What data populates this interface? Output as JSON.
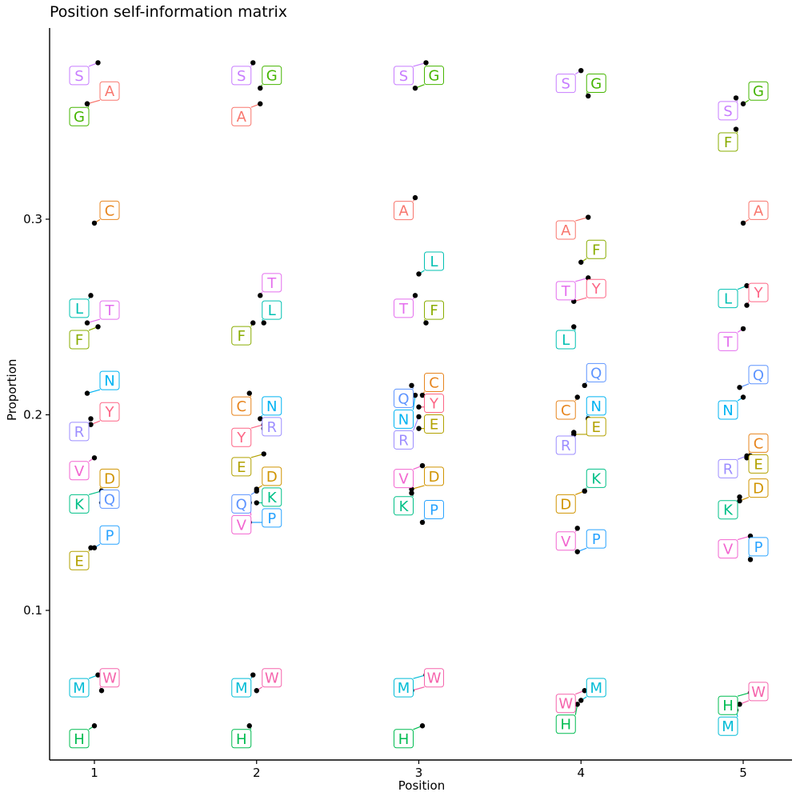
{
  "chart_data": {
    "type": "scatter",
    "title": "Position self-information matrix",
    "xlabel": "Position",
    "ylabel": "Proportion",
    "x_categories": [
      "1",
      "2",
      "3",
      "4",
      "5"
    ],
    "y_ticks": [
      0.1,
      0.2,
      0.3
    ],
    "y_tick_labels": [
      "0.1",
      "0.2",
      "0.3"
    ],
    "ylim": [
      0.025,
      0.395
    ],
    "grid": false,
    "legend": "none",
    "series": [
      {
        "name": "A",
        "color": "#F8766D",
        "values": [
          0.359,
          0.359,
          0.311,
          0.301,
          0.298
        ]
      },
      {
        "name": "C",
        "color": "#E7851E",
        "values": [
          0.298,
          0.211,
          0.21,
          0.209,
          0.179
        ]
      },
      {
        "name": "D",
        "color": "#D09400",
        "values": [
          0.161,
          0.162,
          0.162,
          0.161,
          0.156
        ]
      },
      {
        "name": "E",
        "color": "#B2A100",
        "values": [
          0.132,
          0.18,
          0.193,
          0.19,
          0.178
        ]
      },
      {
        "name": "F",
        "color": "#89AC00",
        "values": [
          0.245,
          0.247,
          0.247,
          0.278,
          0.346
        ]
      },
      {
        "name": "G",
        "color": "#45B500",
        "values": [
          0.359,
          0.367,
          0.367,
          0.363,
          0.359
        ]
      },
      {
        "name": "H",
        "color": "#00BC51",
        "values": [
          0.041,
          0.041,
          0.041,
          0.052,
          0.058
        ]
      },
      {
        "name": "K",
        "color": "#00C087",
        "values": [
          0.161,
          0.155,
          0.16,
          0.161,
          0.158
        ]
      },
      {
        "name": "L",
        "color": "#00C0B2",
        "values": [
          0.261,
          0.247,
          0.272,
          0.245,
          0.266
        ]
      },
      {
        "name": "M",
        "color": "#00BCD6",
        "values": [
          0.067,
          0.067,
          0.067,
          0.054,
          0.049
        ]
      },
      {
        "name": "N",
        "color": "#00B3F2",
        "values": [
          0.211,
          0.198,
          0.21,
          0.198,
          0.209
        ]
      },
      {
        "name": "P",
        "color": "#29A3FF",
        "values": [
          0.132,
          0.145,
          0.145,
          0.13,
          0.126
        ]
      },
      {
        "name": "Q",
        "color": "#5D94FF",
        "values": [
          0.155,
          0.161,
          0.215,
          0.215,
          0.214
        ]
      },
      {
        "name": "R",
        "color": "#9C8DFF",
        "values": [
          0.198,
          0.193,
          0.199,
          0.191,
          0.179
        ]
      },
      {
        "name": "S",
        "color": "#C77CFF",
        "values": [
          0.38,
          0.38,
          0.38,
          0.376,
          0.362
        ]
      },
      {
        "name": "T",
        "color": "#E46EEE",
        "values": [
          0.247,
          0.261,
          0.261,
          0.27,
          0.244
        ]
      },
      {
        "name": "V",
        "color": "#F265D0",
        "values": [
          0.178,
          0.155,
          0.174,
          0.142,
          0.138
        ]
      },
      {
        "name": "W",
        "color": "#F564AC",
        "values": [
          0.059,
          0.059,
          0.059,
          0.059,
          0.052
        ]
      },
      {
        "name": "Y",
        "color": "#FD6585",
        "values": [
          0.195,
          0.195,
          0.204,
          0.258,
          0.256
        ]
      }
    ]
  }
}
